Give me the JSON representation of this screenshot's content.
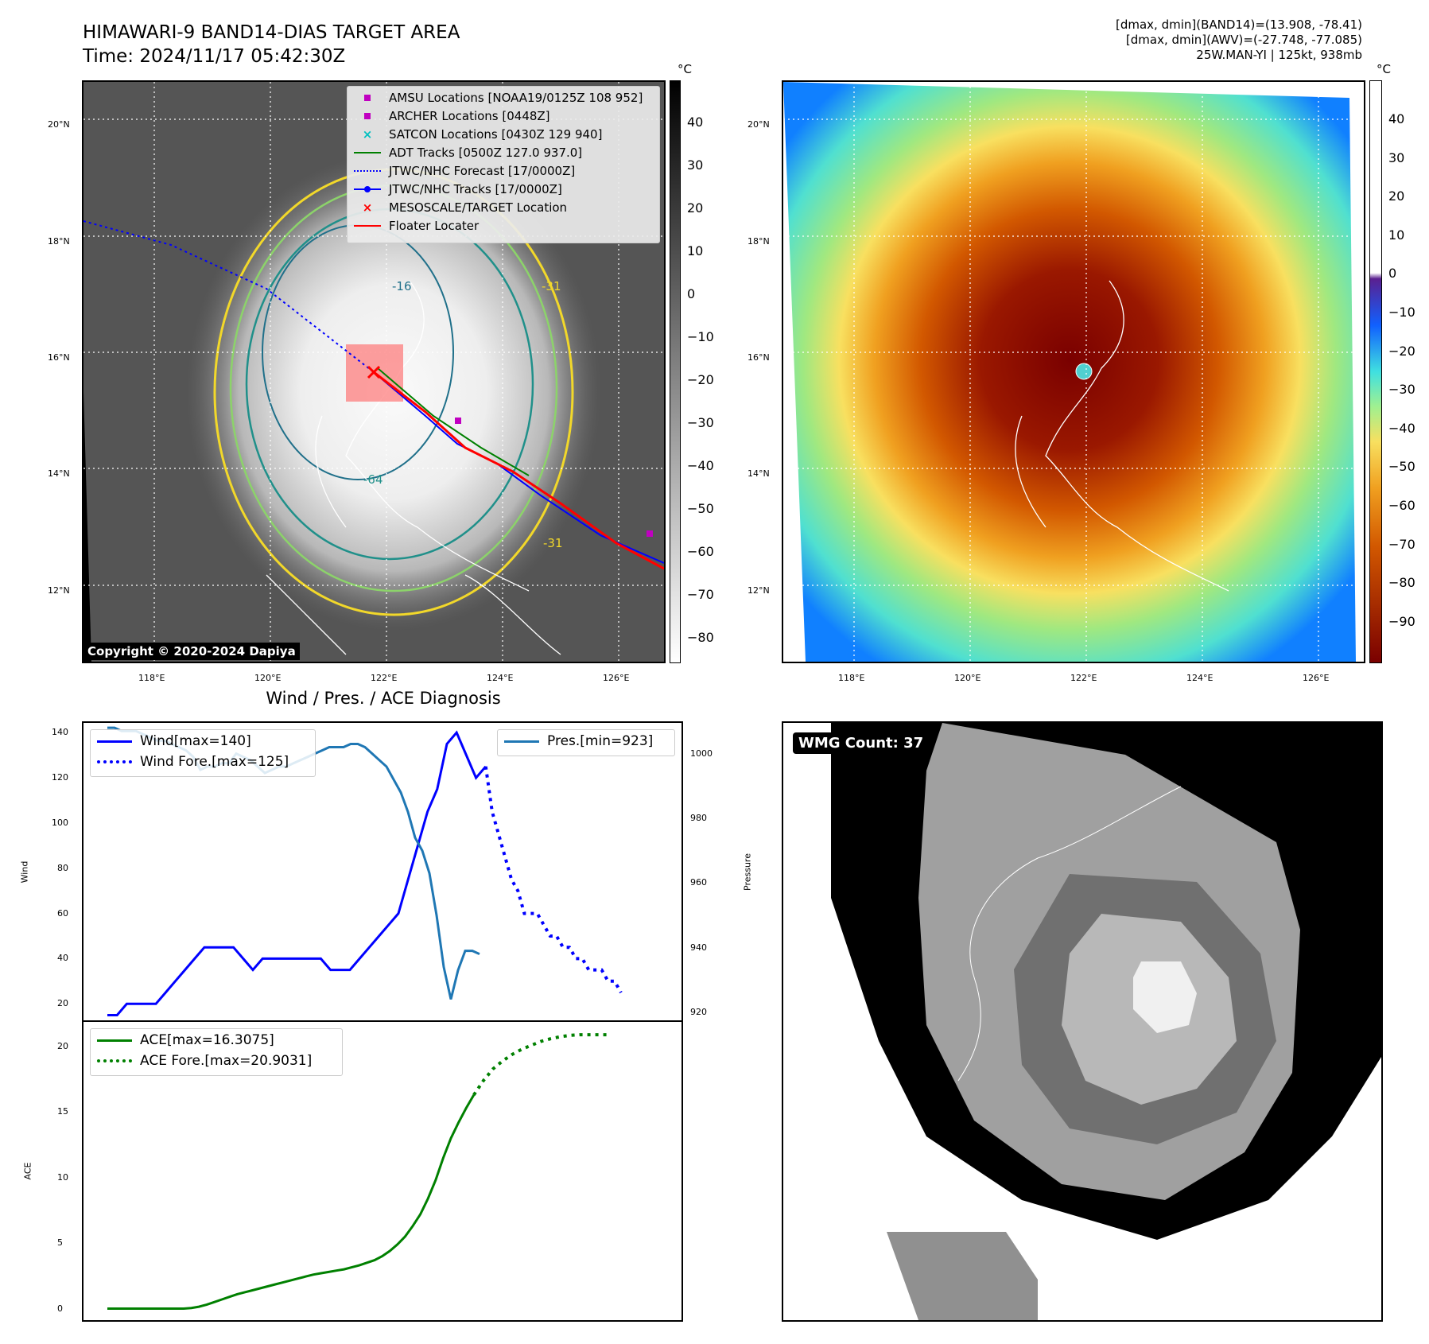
{
  "header": {
    "title_line1": "HIMAWARI-9 BAND14-DIAS TARGET AREA",
    "title_line2": "Time: 2024/11/17 05:42:30Z",
    "info_line1": "[dmax, dmin](BAND14)=(13.908, -78.41)",
    "info_line2": "[dmax, dmin](AWV)=(-27.748, -77.085)",
    "info_line3": "25W.MAN-YI | 125kt, 938mb"
  },
  "map": {
    "lat_labels": [
      "20°N",
      "18°N",
      "16°N",
      "14°N",
      "12°N"
    ],
    "lon_labels": [
      "118°E",
      "120°E",
      "122°E",
      "124°E",
      "126°E"
    ],
    "copyright": "Copyright © 2020-2024 Dapiya",
    "contour_labels": [
      "-16",
      "-31",
      "-64",
      "-31"
    ],
    "legend": [
      {
        "label": "AMSU Locations [NOAA19/0125Z 108 952]",
        "color": "#c000c0",
        "symbol": "square"
      },
      {
        "label": "ARCHER Locations [0448Z]",
        "color": "#c000c0",
        "symbol": "square"
      },
      {
        "label": "SATCON Locations [0430Z 129 940]",
        "color": "#00c0c0",
        "symbol": "x"
      },
      {
        "label": "ADT Tracks [0500Z 127.0 937.0]",
        "color": "#008000",
        "symbol": "line"
      },
      {
        "label": "JTWC/NHC Forecast [17/0000Z]",
        "color": "#0000ff",
        "symbol": "dotted"
      },
      {
        "label": "JTWC/NHC Tracks [17/0000Z]",
        "color": "#0000ff",
        "symbol": "linedot"
      },
      {
        "label": "MESOSCALE/TARGET Location",
        "color": "#ff0000",
        "symbol": "x"
      },
      {
        "label": "Floater Locater",
        "color": "#ff0000",
        "symbol": "line"
      }
    ]
  },
  "colorbar_left": {
    "unit": "°C",
    "ticks": [
      "40",
      "30",
      "20",
      "10",
      "0",
      "−10",
      "−20",
      "−30",
      "−40",
      "−50",
      "−60",
      "−70",
      "−80"
    ]
  },
  "colorbar_right": {
    "unit": "°C",
    "ticks": [
      "40",
      "30",
      "20",
      "10",
      "0",
      "−10",
      "−20",
      "−30",
      "−40",
      "−50",
      "−60",
      "−70",
      "−80",
      "−90"
    ]
  },
  "wmg": {
    "label": "WMG Count: 37"
  },
  "chart_data": [
    {
      "type": "line",
      "title": "Wind / Pres. / ACE Diagnosis",
      "ylabel": "Wind",
      "ylabel2": "Pressure",
      "ylim": [
        12,
        145
      ],
      "ylim2": [
        917,
        1010
      ],
      "yticks": [
        "140",
        "120",
        "100",
        "80",
        "60",
        "40",
        "20"
      ],
      "yticks2": [
        "1000",
        "980",
        "960",
        "940",
        "920"
      ],
      "series": [
        {
          "name": "Wind[max=140]",
          "color": "#0000ff",
          "style": "solid",
          "axis": "left",
          "values": [
            15,
            15,
            20,
            20,
            20,
            20,
            25,
            30,
            35,
            40,
            45,
            45,
            45,
            45,
            40,
            35,
            40,
            40,
            40,
            40,
            40,
            40,
            40,
            35,
            35,
            35,
            40,
            45,
            50,
            55,
            60,
            75,
            90,
            105,
            115,
            135,
            140,
            130,
            120,
            125
          ]
        },
        {
          "name": "Wind Fore.[max=125]",
          "color": "#0000ff",
          "style": "dotted",
          "axis": "left",
          "values": [
            125,
            105,
            95,
            85,
            75,
            70,
            60,
            60,
            60,
            55,
            50,
            50,
            45,
            45,
            40,
            40,
            35,
            35,
            35,
            30,
            30,
            25
          ]
        },
        {
          "name": "Pres.[min=923]",
          "color": "#1f77b4",
          "style": "solid",
          "axis": "right",
          "values": [
            1008,
            1008,
            1007,
            1007,
            1007,
            1006,
            1005,
            1004,
            1004,
            1003,
            1002,
            1001,
            999,
            995,
            996,
            996,
            997,
            997,
            1000,
            999,
            998,
            996,
            994,
            995,
            996,
            996,
            997,
            998,
            999,
            1000,
            1001,
            1002,
            1002,
            1002,
            1003,
            1003,
            1002,
            1000,
            998,
            996,
            992,
            988,
            982,
            974,
            970,
            963,
            950,
            934,
            924,
            933,
            939,
            939,
            938
          ]
        },
        {
          "name": "ACE[max=16.3075]",
          "color": "#008000",
          "style": "solid",
          "axis": "ace",
          "values": [
            0,
            0,
            0,
            0,
            0,
            0,
            0,
            0,
            0,
            0,
            0,
            0.05,
            0.15,
            0.3,
            0.5,
            0.7,
            0.9,
            1.1,
            1.25,
            1.4,
            1.55,
            1.7,
            1.85,
            2.0,
            2.15,
            2.3,
            2.45,
            2.6,
            2.7,
            2.8,
            2.9,
            3.0,
            3.15,
            3.3,
            3.5,
            3.7,
            4.0,
            4.4,
            4.9,
            5.5,
            6.3,
            7.2,
            8.4,
            9.8,
            11.5,
            13.0,
            14.2,
            15.3,
            16.3
          ]
        },
        {
          "name": "ACE Fore.[max=20.9031]",
          "color": "#008000",
          "style": "dotted",
          "axis": "ace",
          "values": [
            16.3,
            17.4,
            18.3,
            18.9,
            19.4,
            19.8,
            20.1,
            20.4,
            20.6,
            20.75,
            20.85,
            20.9,
            20.9,
            20.9,
            20.9
          ]
        }
      ]
    },
    {
      "type": "line",
      "ylabel": "ACE",
      "ylim": [
        -1,
        22
      ],
      "yticks": [
        "20",
        "15",
        "10",
        "5",
        "0"
      ],
      "series_ref": [
        "ACE[max=16.3075]",
        "ACE Fore.[max=20.9031]"
      ]
    }
  ]
}
